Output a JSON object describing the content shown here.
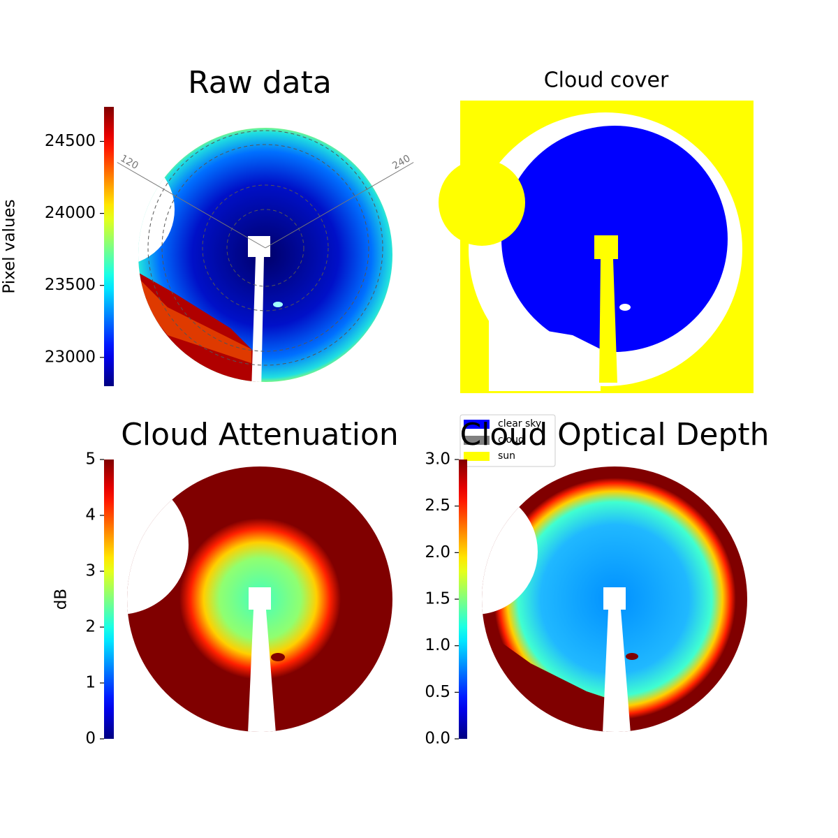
{
  "chart_data": [
    {
      "type": "image",
      "title": "Raw data",
      "colorbar_label": "Pixel values",
      "colormap": "jet",
      "ylim": [
        22800,
        24740
      ],
      "yticks": [
        23000,
        23500,
        24000,
        24500
      ],
      "thetaticks": [
        120,
        240
      ]
    },
    {
      "type": "image",
      "title": "Cloud cover",
      "legend": [
        {
          "name": "clear sky",
          "color": "#0000ff"
        },
        {
          "name": "cloud",
          "color": "#808080"
        },
        {
          "name": "sun",
          "color": "#ffff00"
        }
      ]
    },
    {
      "type": "image",
      "title": "Cloud Attenuation",
      "colorbar_label": "dB",
      "colormap": "jet",
      "ylim": [
        0,
        5
      ],
      "yticks": [
        0,
        1,
        2,
        3,
        4,
        5
      ]
    },
    {
      "type": "image",
      "title": "Cloud Optical Depth",
      "colormap": "jet",
      "ylim": [
        0,
        3
      ],
      "yticks": [
        {
          "value": 0,
          "label": "0.0"
        },
        0.5,
        {
          "value": 1,
          "label": "1.0"
        },
        1.5,
        {
          "value": 2,
          "label": "2.0"
        },
        2.5,
        {
          "value": 3,
          "label": "3.0"
        }
      ]
    }
  ]
}
